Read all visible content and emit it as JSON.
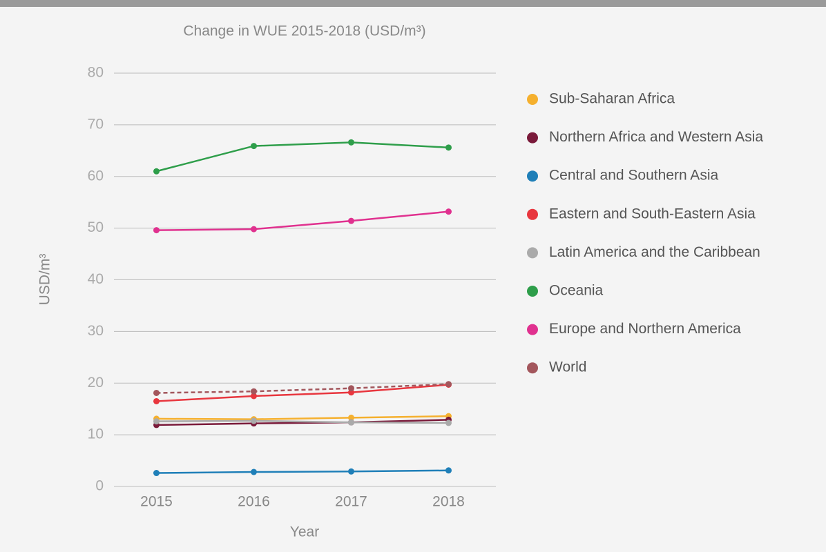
{
  "chart_data": {
    "type": "line",
    "title": "Change in WUE 2015-2018 (USD/m³)",
    "x_label": "Year",
    "y_label": "USD/m³",
    "categories": [
      "2015",
      "2016",
      "2017",
      "2018"
    ],
    "ylim": [
      0,
      80
    ],
    "yticks": [
      0,
      10,
      20,
      30,
      40,
      50,
      60,
      70,
      80
    ],
    "grid": true,
    "legend": "right",
    "series": [
      {
        "name": "Sub-Saharan Africa",
        "color": "#f5b02e",
        "values": [
          13.1,
          13.0,
          13.3,
          13.6
        ]
      },
      {
        "name": "Northern Africa and Western Asia",
        "color": "#7a1a3a",
        "values": [
          11.9,
          12.2,
          12.4,
          12.9
        ]
      },
      {
        "name": "Central and Southern Asia",
        "color": "#1f7fb8",
        "values": [
          2.6,
          2.8,
          2.9,
          3.1
        ]
      },
      {
        "name": "Eastern and South-Eastern Asia",
        "color": "#e8363e",
        "values": [
          16.5,
          17.5,
          18.2,
          19.7
        ]
      },
      {
        "name": "Latin America and the Caribbean",
        "color": "#aaaaaa",
        "values": [
          12.6,
          12.7,
          12.4,
          12.3
        ]
      },
      {
        "name": "Oceania",
        "color": "#2e9e4a",
        "values": [
          61.0,
          65.9,
          66.6,
          65.6
        ]
      },
      {
        "name": "Europe and Northern America",
        "color": "#e0318f",
        "values": [
          49.6,
          49.8,
          51.4,
          53.2
        ]
      },
      {
        "name": "World",
        "color": "#a3565c",
        "values": [
          18.1,
          18.4,
          19.0,
          19.8
        ],
        "line_style": "dashed"
      }
    ]
  }
}
